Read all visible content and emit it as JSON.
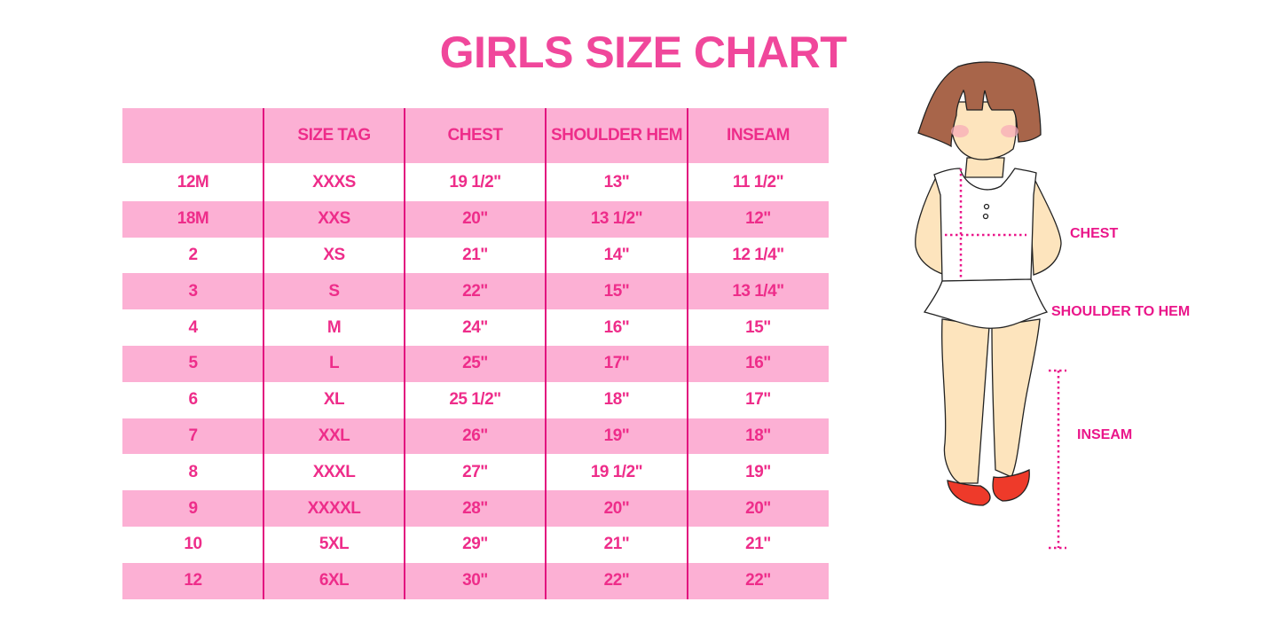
{
  "title": "GIRLS SIZE CHART",
  "table": {
    "headers": [
      "",
      "SIZE TAG",
      "CHEST",
      "SHOULDER HEM",
      "INSEAM"
    ],
    "rows": [
      [
        "12M",
        "XXXS",
        "19 1/2\"",
        "13\"",
        "11 1/2\""
      ],
      [
        "18M",
        "XXS",
        "20\"",
        "13 1/2\"",
        "12\""
      ],
      [
        "2",
        "XS",
        "21\"",
        "14\"",
        "12 1/4\""
      ],
      [
        "3",
        "S",
        "22\"",
        "15\"",
        "13 1/4\""
      ],
      [
        "4",
        "M",
        "24\"",
        "16\"",
        "15\""
      ],
      [
        "5",
        "L",
        "25\"",
        "17\"",
        "16\""
      ],
      [
        "6",
        "XL",
        "25 1/2\"",
        "18\"",
        "17\""
      ],
      [
        "7",
        "XXL",
        "26\"",
        "19\"",
        "18\""
      ],
      [
        "8",
        "XXXL",
        "27\"",
        "19 1/2\"",
        "19\""
      ],
      [
        "9",
        "XXXXL",
        "28\"",
        "20\"",
        "20\""
      ],
      [
        "10",
        "5XL",
        "29\"",
        "21\"",
        "21\""
      ],
      [
        "12",
        "6XL",
        "30\"",
        "22\"",
        "22\""
      ]
    ]
  },
  "figure": {
    "labels": {
      "chest": "CHEST",
      "shoulder_to_hem": "SHOULDER TO HEM",
      "inseam": "INSEAM"
    }
  },
  "colors": {
    "accent": "#f0479b",
    "row_pink": "#fcb0d4",
    "divider": "#e2147f"
  }
}
